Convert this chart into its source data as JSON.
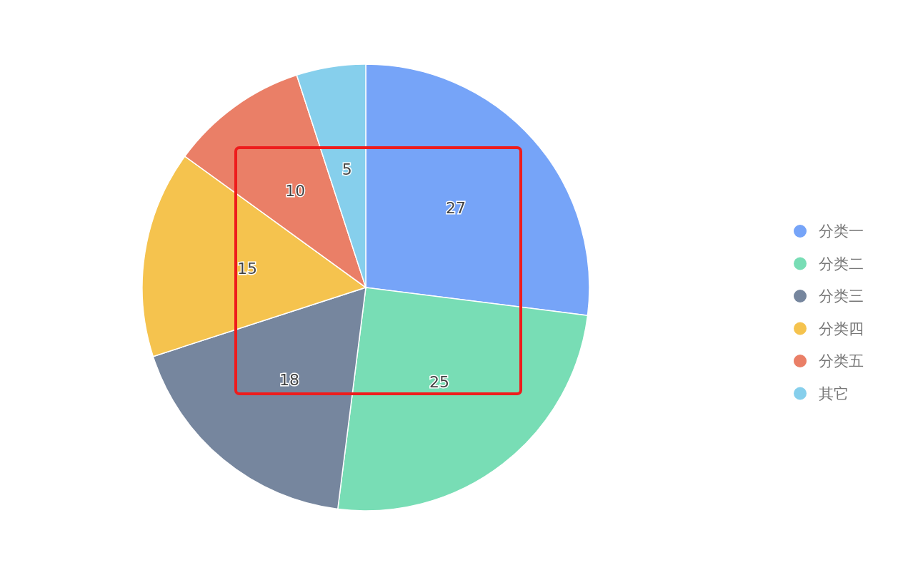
{
  "chart_data": {
    "type": "pie",
    "categories": [
      "分类一",
      "分类二",
      "分类三",
      "分类四",
      "分类五",
      "其它"
    ],
    "values": [
      27,
      25,
      18,
      15,
      10,
      5
    ],
    "colors": [
      "#76a4f8",
      "#78ddb5",
      "#76869e",
      "#f5c34e",
      "#ea7f67",
      "#86cfec"
    ],
    "data_labels": true,
    "legend": "right"
  }
}
